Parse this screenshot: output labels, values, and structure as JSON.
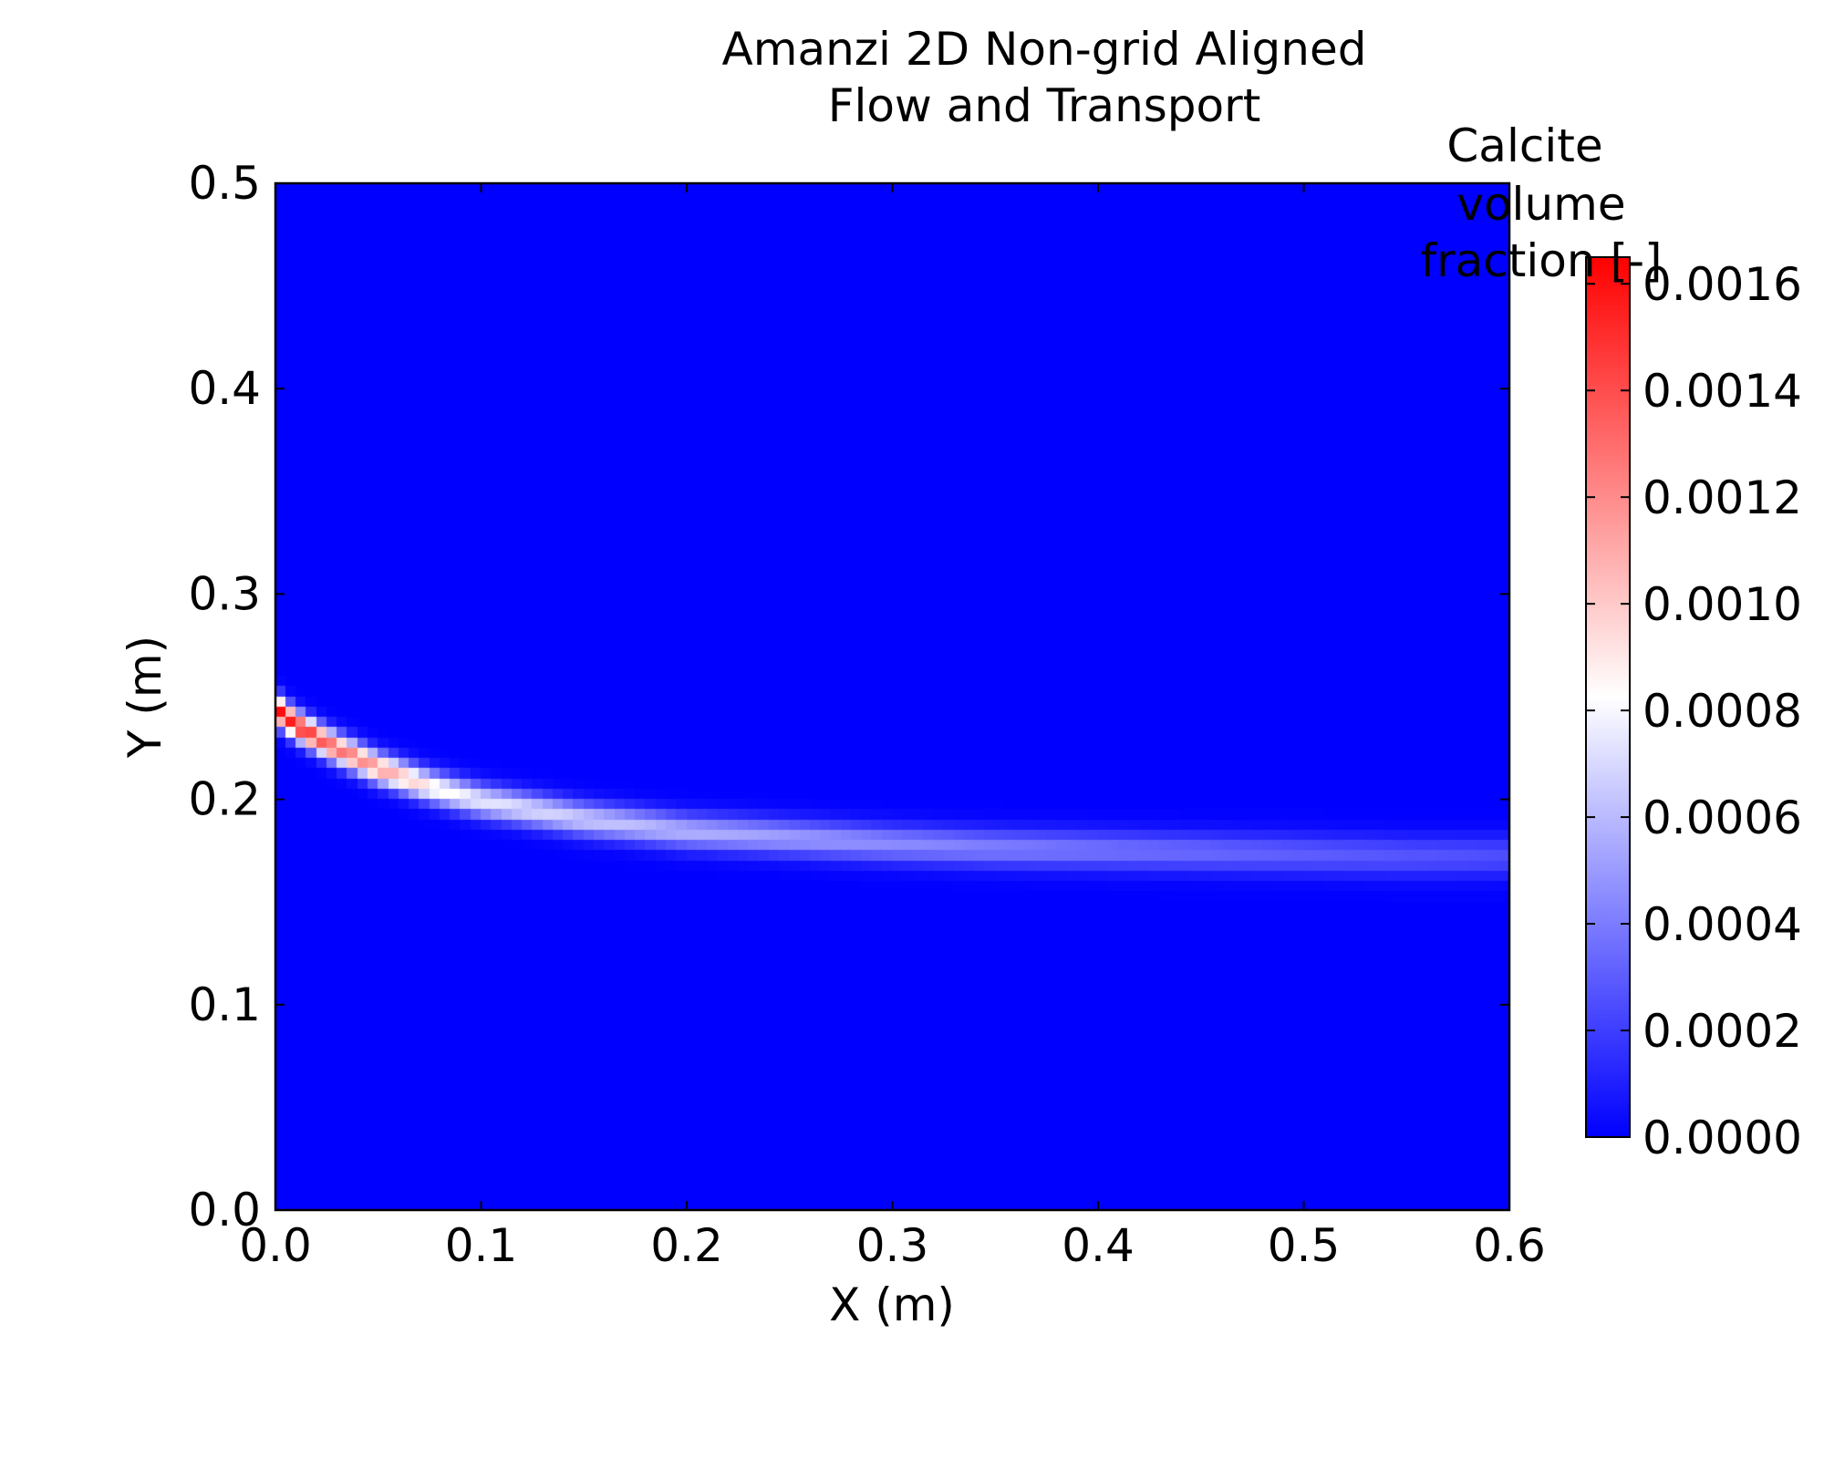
{
  "chart_data": {
    "type": "heatmap",
    "title_lines": [
      "Amanzi 2D Non-grid Aligned",
      "Flow and Transport"
    ],
    "xlabel": "X (m)",
    "ylabel": "Y (m)",
    "xlim": [
      0.0,
      0.6
    ],
    "ylim": [
      0.0,
      0.5
    ],
    "x_ticks": [
      0.0,
      0.1,
      0.2,
      0.3,
      0.4,
      0.5,
      0.6
    ],
    "x_tick_labels": [
      "0.0",
      "0.1",
      "0.2",
      "0.3",
      "0.4",
      "0.5",
      "0.6"
    ],
    "y_ticks": [
      0.0,
      0.1,
      0.2,
      0.3,
      0.4,
      0.5
    ],
    "y_tick_labels": [
      "0.0",
      "0.1",
      "0.2",
      "0.3",
      "0.4",
      "0.5"
    ],
    "grid": false,
    "colorbar": {
      "label_lines": [
        "Calcite",
        "volume",
        "fraction [-]"
      ],
      "range": [
        0.0,
        0.00165
      ],
      "ticks": [
        0.0,
        0.0002,
        0.0004,
        0.0006,
        0.0008,
        0.001,
        0.0012,
        0.0014,
        0.0016
      ],
      "tick_labels": [
        "0.0000",
        "0.0002",
        "0.0004",
        "0.0006",
        "0.0008",
        "0.0010",
        "0.0012",
        "0.0014",
        "0.0016"
      ],
      "colormap": [
        "#0000ff",
        "#ffffff",
        "#ff0000"
      ],
      "placement": "right"
    },
    "field": {
      "description_of_values": "Calcite volume fraction along a curved band; zero elsewhere",
      "band_centerline": [
        {
          "x": 0.0,
          "y": 0.244
        },
        {
          "x": 0.01,
          "y": 0.236
        },
        {
          "x": 0.025,
          "y": 0.227
        },
        {
          "x": 0.05,
          "y": 0.215
        },
        {
          "x": 0.075,
          "y": 0.206
        },
        {
          "x": 0.1,
          "y": 0.199
        },
        {
          "x": 0.15,
          "y": 0.19
        },
        {
          "x": 0.2,
          "y": 0.184
        },
        {
          "x": 0.25,
          "y": 0.181
        },
        {
          "x": 0.3,
          "y": 0.178
        },
        {
          "x": 0.35,
          "y": 0.176
        },
        {
          "x": 0.4,
          "y": 0.175
        },
        {
          "x": 0.45,
          "y": 0.174
        },
        {
          "x": 0.5,
          "y": 0.173
        },
        {
          "x": 0.55,
          "y": 0.172
        },
        {
          "x": 0.6,
          "y": 0.172
        }
      ],
      "band_peak_value": [
        {
          "x": 0.0,
          "v": 0.00165
        },
        {
          "x": 0.025,
          "v": 0.00135
        },
        {
          "x": 0.05,
          "v": 0.00115
        },
        {
          "x": 0.075,
          "v": 0.0009
        },
        {
          "x": 0.1,
          "v": 0.00075
        },
        {
          "x": 0.15,
          "v": 0.00065
        },
        {
          "x": 0.2,
          "v": 0.00057
        },
        {
          "x": 0.3,
          "v": 0.00045
        },
        {
          "x": 0.4,
          "v": 0.00037
        },
        {
          "x": 0.5,
          "v": 0.0003
        },
        {
          "x": 0.6,
          "v": 0.00025
        }
      ],
      "band_half_width": [
        {
          "x": 0.0,
          "w": 0.007
        },
        {
          "x": 0.1,
          "w": 0.008
        },
        {
          "x": 0.3,
          "w": 0.009
        },
        {
          "x": 0.6,
          "w": 0.01
        }
      ]
    }
  }
}
